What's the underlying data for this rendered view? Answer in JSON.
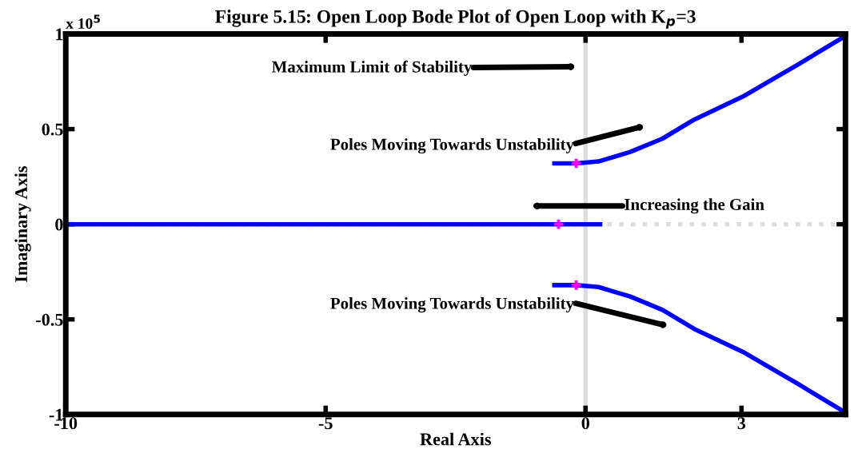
{
  "chart_data": {
    "type": "line",
    "title": "Figure 5.15: Open Loop Bode Plot of Open Loop with K$_{p}$=3",
    "xlabel": "Real Axis",
    "ylabel": "Imaginary Axis",
    "xlim": [
      -10,
      5
    ],
    "ylim": [
      -1,
      1
    ],
    "xticks": [
      -10,
      -5,
      0,
      3
    ],
    "yticks": [
      -1,
      -0.5,
      0,
      0.5,
      1
    ],
    "grid": false,
    "legend": false,
    "line_style": "solid",
    "marker": "none",
    "series": [
      {
        "color": "#0000ff",
        "x": [
          -0.6,
          -0.18,
          0.25,
          0.86,
          1.48,
          2.09,
          3.02,
          4.09,
          4.94
        ],
        "values": [
          0.32,
          0.32,
          0.33,
          0.38,
          0.45,
          0.55,
          0.67,
          0.84,
          0.98
        ]
      },
      {
        "color": "#0000ff",
        "x": [
          -0.6,
          -0.18,
          0.25,
          0.86,
          1.48,
          2.09,
          3.02,
          4.09,
          4.94
        ],
        "values": [
          -0.32,
          -0.32,
          -0.33,
          -0.38,
          -0.45,
          -0.55,
          -0.67,
          -0.84,
          -0.98
        ]
      },
      {
        "color": "#0000ff",
        "x": [
          -10,
          0.28
        ],
        "values": [
          0,
          0
        ]
      },
      {
        "type": "scatter",
        "marker": "cross",
        "color": "#ff00ff",
        "x": [
          -0.18,
          -0.18,
          -0.52
        ],
        "values": [
          0.32,
          -0.32,
          0
        ]
      }
    ],
    "ref_lines": [
      {
        "axis": "x",
        "value": 0,
        "color": "#dddddd",
        "line_style": "solid"
      },
      {
        "axis": "y",
        "value": 0,
        "color": "#dddddd",
        "line_style": "dotted"
      }
    ],
    "annotations": [
      "x 10$^{5}$",
      "Maximum Limit of Stability",
      "Poles Moving Towards Unstability",
      "Increasing the Gain",
      "Poles Moving Towards Unstability"
    ]
  }
}
